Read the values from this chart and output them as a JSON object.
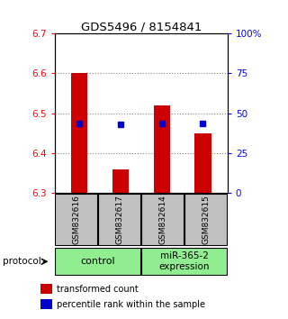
{
  "title": "GDS5496 / 8154841",
  "samples": [
    "GSM832616",
    "GSM832617",
    "GSM832614",
    "GSM832615"
  ],
  "transformed_counts": [
    6.6,
    6.36,
    6.52,
    6.45
  ],
  "percentile_ranks_pct": [
    43.5,
    43.2,
    43.7,
    43.5
  ],
  "ylim_left": [
    6.3,
    6.7
  ],
  "ylim_right": [
    0,
    100
  ],
  "yticks_left": [
    6.3,
    6.4,
    6.5,
    6.6,
    6.7
  ],
  "yticks_right": [
    0,
    25,
    50,
    75,
    100
  ],
  "ytick_right_labels": [
    "0",
    "25",
    "50",
    "75",
    "100%"
  ],
  "bar_color": "#CC0000",
  "dot_color": "#0000CC",
  "bar_bottom": 6.3,
  "bar_width": 0.4,
  "dot_size": 5,
  "legend_items": [
    {
      "color": "#CC0000",
      "label": "transformed count"
    },
    {
      "color": "#0000CC",
      "label": "percentile rank within the sample"
    }
  ],
  "protocol_label": "protocol",
  "group_row_color": "#90EE90",
  "sample_row_color": "#C0C0C0",
  "dotted_grid_color": "#888888",
  "group1_name": "control",
  "group2_name": "miR-365-2\nexpression",
  "group1_indices": [
    0,
    1
  ],
  "group2_indices": [
    2,
    3
  ]
}
